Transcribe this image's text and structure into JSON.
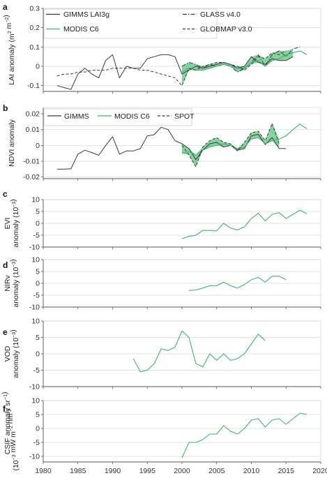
{
  "colors": {
    "green": "#3cb371",
    "greenFill": "#5cc47e",
    "dark": "#3a3a3a",
    "grid": "#d9d9d9",
    "axis": "#555555"
  },
  "x_axis": {
    "ticks": [
      1980,
      1985,
      1990,
      1995,
      2000,
      2005,
      2010,
      2015,
      2020
    ],
    "range": [
      1980,
      2020
    ]
  },
  "chart_data": [
    {
      "panel": "a",
      "type": "line",
      "ylabel_main": "LAI anomaly (m",
      "ylabel_sup1": "2",
      "ylabel_mid": " m",
      "ylabel_sup2": "−2",
      "ylabel_end": ")",
      "ylim": [
        -0.13,
        0.3
      ],
      "yticks": [
        -0.1,
        0,
        0.1,
        0.2,
        0.3
      ],
      "legend": [
        "GIMMS LAI3g",
        "GLASS v4.0",
        "MODIS C6",
        "GLOBMAP v3.0"
      ],
      "series": [
        {
          "name": "GIMMS LAI3g",
          "style": "solid-dark",
          "x": [
            1982,
            1983,
            1984,
            1985,
            1986,
            1987,
            1988,
            1989,
            1990,
            1991,
            1992,
            1993,
            1994,
            1995,
            1996,
            1997,
            1998,
            1999,
            2000,
            2001,
            2002,
            2003,
            2004,
            2005,
            2006,
            2007,
            2008,
            2009,
            2010,
            2011,
            2012,
            2013,
            2014,
            2015,
            2016
          ],
          "y": [
            -0.1,
            -0.11,
            -0.12,
            -0.04,
            -0.01,
            -0.04,
            -0.06,
            0.03,
            0.06,
            -0.06,
            0.0,
            -0.01,
            -0.01,
            0.04,
            0.05,
            0.06,
            0.06,
            0.05,
            -0.04,
            -0.02,
            0.0,
            -0.01,
            0.0,
            0.01,
            0.02,
            0.01,
            -0.01,
            0.0,
            0.05,
            0.02,
            0.01,
            0.04,
            0.03,
            0.03,
            0.05
          ]
        },
        {
          "name": "GLASS v4.0",
          "style": "dashdot-dark",
          "x": [
            2000,
            2001,
            2002,
            2003,
            2004,
            2005,
            2006,
            2007,
            2008,
            2009,
            2010,
            2011,
            2012,
            2013,
            2014,
            2015,
            2016,
            2017
          ],
          "y": [
            0.0,
            0.02,
            0.01,
            -0.01,
            0.01,
            0.0,
            0.01,
            0.0,
            -0.03,
            -0.01,
            0.02,
            0.06,
            0.0,
            0.06,
            0.08,
            0.05,
            0.09,
            0.1
          ]
        },
        {
          "name": "MODIS C6",
          "style": "solid-green",
          "x": [
            2000,
            2001,
            2002,
            2003,
            2004,
            2005,
            2006,
            2007,
            2008,
            2009,
            2010,
            2011,
            2012,
            2013,
            2014,
            2015,
            2016,
            2017,
            2018
          ],
          "y": [
            -0.03,
            -0.01,
            -0.02,
            -0.02,
            -0.01,
            0.0,
            0.01,
            0.0,
            -0.01,
            -0.01,
            0.02,
            0.03,
            0.0,
            0.03,
            0.04,
            0.06,
            0.07,
            0.08,
            0.06
          ]
        },
        {
          "name": "GLOBMAP v3.0",
          "style": "dashed-dark",
          "x": [
            1982,
            1983,
            1984,
            1985,
            1986,
            1987,
            1988,
            1989,
            1990,
            1991,
            1992,
            1993,
            1994,
            1995,
            1996,
            1997,
            1998,
            1999,
            2000,
            2001,
            2002,
            2003,
            2004,
            2005,
            2006,
            2007,
            2008,
            2009,
            2010,
            2011,
            2012,
            2013,
            2014,
            2015
          ],
          "y": [
            -0.05,
            -0.04,
            -0.04,
            -0.03,
            -0.03,
            -0.02,
            -0.02,
            -0.02,
            -0.01,
            -0.01,
            -0.01,
            -0.01,
            -0.02,
            -0.02,
            -0.03,
            -0.04,
            -0.05,
            -0.06,
            -0.1,
            -0.01,
            -0.02,
            0.0,
            0.01,
            0.02,
            0.02,
            0.01,
            0.0,
            -0.02,
            0.01,
            0.05,
            0.04,
            0.07,
            0.06,
            0.08
          ]
        }
      ],
      "band_series": [
        "GIMMS LAI3g",
        "GLASS v4.0",
        "MODIS C6",
        "GLOBMAP v3.0"
      ],
      "band_x": [
        2000,
        2016
      ]
    },
    {
      "panel": "b",
      "type": "line",
      "ylabel_main": "NDVI anomaly",
      "ylim": [
        -0.021,
        0.024
      ],
      "yticks": [
        -0.02,
        -0.01,
        0,
        0.01,
        0.02
      ],
      "legend": [
        "GIMMS",
        "MODIS C6",
        "SPOT"
      ],
      "series": [
        {
          "name": "GIMMS",
          "style": "solid-dark",
          "x": [
            1982,
            1983,
            1984,
            1985,
            1986,
            1987,
            1988,
            1989,
            1990,
            1991,
            1992,
            1993,
            1994,
            1995,
            1996,
            1997,
            1998,
            1999,
            2000,
            2001,
            2002,
            2003,
            2004,
            2005,
            2006,
            2007,
            2008,
            2009,
            2010,
            2011,
            2012,
            2013,
            2014,
            2015
          ],
          "y": [
            -0.015,
            -0.015,
            -0.0148,
            -0.0055,
            -0.003,
            -0.0045,
            -0.0062,
            0.0,
            0.0055,
            -0.0055,
            -0.0035,
            -0.0035,
            -0.002,
            0.006,
            0.0068,
            0.0115,
            0.01,
            0.003,
            0.001,
            -0.002,
            -0.009,
            -0.003,
            0.001,
            0.002,
            -0.001,
            0.0,
            -0.003,
            -0.002,
            0.006,
            0.007,
            0.0005,
            0.005,
            -0.002,
            -0.002
          ]
        },
        {
          "name": "MODIS C6",
          "style": "solid-green",
          "x": [
            2000,
            2001,
            2002,
            2003,
            2004,
            2005,
            2006,
            2007,
            2008,
            2009,
            2010,
            2011,
            2012,
            2013,
            2014,
            2015,
            2016,
            2017,
            2018
          ],
          "y": [
            -0.005,
            -0.004,
            -0.006,
            -0.003,
            -0.001,
            0.0,
            0.001,
            0.0,
            -0.002,
            -0.001,
            0.004,
            0.005,
            0.001,
            0.003,
            0.004,
            0.006,
            0.01,
            0.0135,
            0.0105
          ]
        },
        {
          "name": "SPOT",
          "style": "dashed-dark",
          "x": [
            2000,
            2001,
            2002,
            2003,
            2004,
            2005,
            2006,
            2007,
            2008,
            2009,
            2010,
            2011,
            2012,
            2013,
            2014
          ],
          "y": [
            0.0,
            -0.006,
            -0.0135,
            -0.001,
            0.003,
            0.005,
            0.002,
            0.001,
            -0.0035,
            0.002,
            0.008,
            0.009,
            0.003,
            0.014,
            0.001
          ]
        }
      ],
      "band_series": [
        "GIMMS",
        "MODIS C6",
        "SPOT"
      ],
      "band_x": [
        2000,
        2014
      ]
    },
    {
      "panel": "c",
      "type": "line",
      "ylabel_main": "EVI",
      "ylabel_line2": "anomaly (10",
      "ylabel_sup1": "−3",
      "ylabel_end": ")",
      "ylim": [
        -10,
        10
      ],
      "yticks": [
        -10,
        -5,
        0,
        5,
        10
      ],
      "series": [
        {
          "name": "",
          "style": "solid-green",
          "x": [
            2000,
            2001,
            2002,
            2003,
            2004,
            2005,
            2006,
            2007,
            2008,
            2009,
            2010,
            2011,
            2012,
            2013,
            2014,
            2015,
            2016,
            2017,
            2018
          ],
          "y": [
            -6.5,
            -5.5,
            -5,
            -3,
            -3,
            -3.2,
            0,
            -2,
            -2.8,
            -1.5,
            2,
            4.2,
            1,
            3.8,
            4.5,
            2,
            3.8,
            5.5,
            4
          ]
        }
      ]
    },
    {
      "panel": "d",
      "type": "line",
      "ylabel_main": "NIRv",
      "ylabel_line2": "anomaly (10",
      "ylabel_sup1": "−3",
      "ylabel_end": ")",
      "ylim": [
        -10,
        10
      ],
      "yticks": [
        -10,
        -5,
        0,
        5,
        10
      ],
      "series": [
        {
          "name": "",
          "style": "solid-green",
          "x": [
            2001,
            2002,
            2003,
            2004,
            2005,
            2006,
            2007,
            2008,
            2009,
            2010,
            2011,
            2012,
            2013,
            2014,
            2015
          ],
          "y": [
            -3,
            -2.8,
            -2,
            -1,
            -1,
            0.5,
            -1,
            -2,
            -0.5,
            1.5,
            2.5,
            0.5,
            3,
            3,
            1.5
          ]
        }
      ]
    },
    {
      "panel": "e",
      "type": "line",
      "ylabel_main": "VOD",
      "ylabel_line2": "anomaly (10",
      "ylabel_sup1": "−3",
      "ylabel_end": ")",
      "ylim": [
        -10,
        10
      ],
      "yticks": [
        -10,
        -5,
        0,
        5,
        10
      ],
      "series": [
        {
          "name": "",
          "style": "solid-green",
          "x": [
            1993,
            1994,
            1995,
            1996,
            1997,
            1998,
            1999,
            2000,
            2001,
            2002,
            2003,
            2004,
            2005,
            2006,
            2007,
            2008,
            2009,
            2010,
            2011,
            2012
          ],
          "y": [
            -1.5,
            -5.5,
            -5,
            -3,
            1.5,
            1,
            2,
            7,
            5,
            -3,
            -4,
            0,
            -2,
            0,
            -2,
            -1.5,
            0,
            3,
            6,
            4
          ]
        }
      ]
    },
    {
      "panel": "f",
      "type": "line",
      "ylabel_main": "CSIF anomaly",
      "ylabel_line2": "(10",
      "ylabel_sup1": "−3",
      "ylabel_mid": " mW m",
      "ylabel_sup2": "−2",
      "ylabel_mid2": " nm",
      "ylabel_sup3": "−1",
      "ylabel_mid3": " sr",
      "ylabel_sup4": "−1",
      "ylabel_end": ")",
      "ylim": [
        -12,
        10
      ],
      "yticks": [
        -10,
        -5,
        0,
        5,
        10
      ],
      "series": [
        {
          "name": "",
          "style": "solid-green",
          "x": [
            2000,
            2001,
            2002,
            2003,
            2004,
            2005,
            2006,
            2007,
            2008,
            2009,
            2010,
            2011,
            2012,
            2013,
            2014,
            2015,
            2016,
            2017,
            2018
          ],
          "y": [
            -10.5,
            -5,
            -5,
            -4,
            -2,
            -2,
            1,
            -1,
            -2,
            0,
            3,
            3.5,
            0.5,
            3,
            3.5,
            1.5,
            3.5,
            5.5,
            5
          ]
        }
      ]
    }
  ]
}
